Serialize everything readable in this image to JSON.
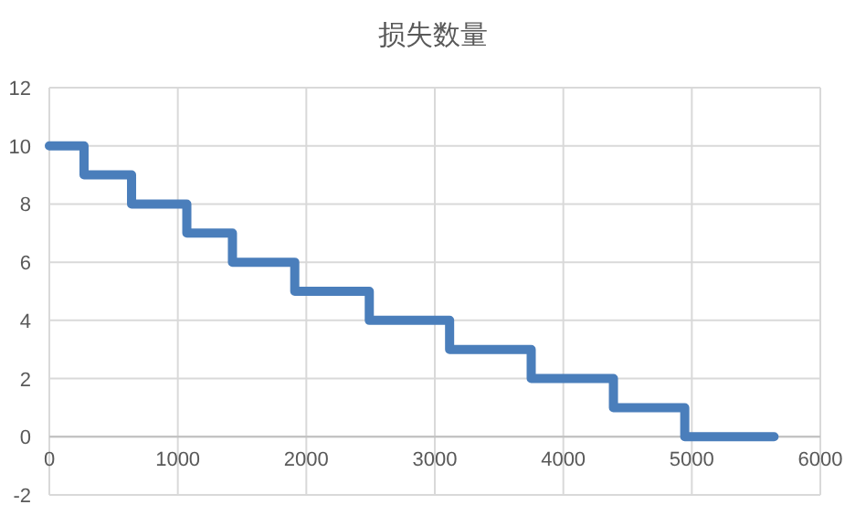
{
  "chart_data": {
    "type": "step",
    "title": "损失数量",
    "x": [
      0,
      270,
      640,
      1070,
      1425,
      1910,
      2490,
      3115,
      3750,
      4390,
      4945,
      5640
    ],
    "series": [
      {
        "color": "#4a7ebb",
        "values": [
          10,
          9,
          8,
          7,
          6,
          5,
          4,
          3,
          2,
          1,
          0,
          0
        ]
      }
    ],
    "xlim": [
      0,
      6000
    ],
    "xticks": [
      0,
      1000,
      2000,
      3000,
      4000,
      5000,
      6000
    ],
    "ylim": [
      -2,
      12
    ],
    "yticks": [
      -2,
      0,
      2,
      4,
      6,
      8,
      10,
      12
    ],
    "grid": true,
    "marker": "none",
    "line_style": "solid"
  }
}
